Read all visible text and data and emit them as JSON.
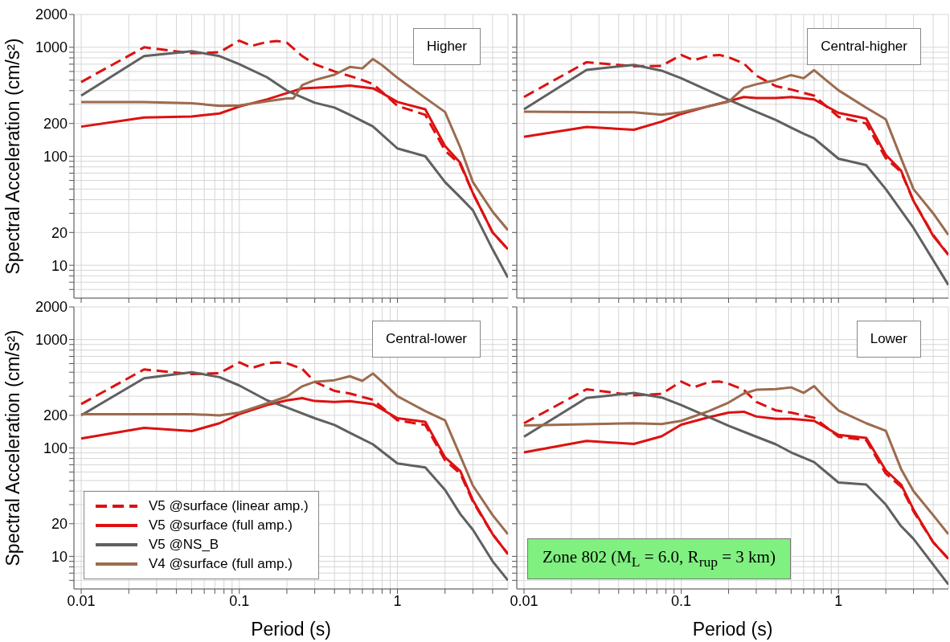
{
  "chart_data": [
    {
      "type": "line",
      "log": "xy",
      "grid": true,
      "line_style": "solid",
      "tick_labels": "y",
      "ylabel": "Spectral Acceleration (cm/s²)",
      "annotations": [
        "Higher"
      ],
      "xlim": [
        0.009,
        5
      ],
      "ylim": [
        5,
        2000
      ],
      "xticks": [
        0.01,
        {
          "value": 0.02,
          "label": null
        },
        {
          "value": 0.03,
          "label": null
        },
        {
          "value": 0.04,
          "label": null
        },
        {
          "value": 0.05,
          "label": null
        },
        {
          "value": 0.06,
          "label": null
        },
        {
          "value": 0.07,
          "label": null
        },
        {
          "value": 0.08,
          "label": null
        },
        {
          "value": 0.09,
          "label": null
        },
        0.1,
        {
          "value": 0.2,
          "label": null
        },
        {
          "value": 0.3,
          "label": null
        },
        {
          "value": 0.4,
          "label": null
        },
        {
          "value": 0.5,
          "label": null
        },
        {
          "value": 0.6,
          "label": null
        },
        {
          "value": 0.7,
          "label": null
        },
        {
          "value": 0.8,
          "label": null
        },
        {
          "value": 0.9,
          "label": null
        },
        1,
        {
          "value": 2,
          "label": null
        },
        {
          "value": 3,
          "label": null
        },
        {
          "value": 4,
          "label": null
        }
      ],
      "yticks": [
        {
          "value": 6,
          "label": null
        },
        {
          "value": 7,
          "label": null
        },
        {
          "value": 8,
          "label": null
        },
        {
          "value": 9,
          "label": null
        },
        10,
        20,
        {
          "value": 30,
          "label": null
        },
        {
          "value": 40,
          "label": null
        },
        {
          "value": 50,
          "label": null
        },
        {
          "value": 60,
          "label": null
        },
        {
          "value": 70,
          "label": null
        },
        {
          "value": 80,
          "label": null
        },
        {
          "value": 90,
          "label": null
        },
        100,
        200,
        {
          "value": 300,
          "label": null
        },
        {
          "value": 400,
          "label": null
        },
        {
          "value": 500,
          "label": null
        },
        {
          "value": 600,
          "label": null
        },
        {
          "value": 700,
          "label": null
        },
        {
          "value": 800,
          "label": null
        },
        {
          "value": 900,
          "label": null
        },
        1000,
        2000
      ],
      "series": [
        {
          "color": "#dd1111",
          "line_style": "dashed",
          "x": [
            0.01,
            0.025,
            0.05,
            0.075,
            0.1,
            0.12,
            0.15,
            0.175,
            0.2,
            0.25,
            0.3,
            0.4,
            0.5,
            0.6,
            0.7,
            0.8,
            1,
            1.5,
            2,
            2.5,
            3,
            4,
            5
          ],
          "values": [
            480,
            1000,
            880,
            900,
            1150,
            1030,
            1120,
            1140,
            1100,
            830,
            700,
            600,
            545,
            500,
            460,
            390,
            290,
            240,
            113,
            84,
            46,
            20,
            14
          ]
        },
        {
          "color": "#dd1111",
          "x": [
            0.01,
            0.025,
            0.05,
            0.075,
            0.1,
            0.15,
            0.2,
            0.25,
            0.3,
            0.4,
            0.5,
            0.7,
            0.8,
            1,
            1.5,
            2,
            2.5,
            3,
            4,
            5
          ],
          "values": [
            187,
            227,
            232,
            247,
            286,
            333,
            380,
            420,
            425,
            435,
            445,
            420,
            380,
            315,
            270,
            124,
            87,
            46,
            20,
            14
          ]
        },
        {
          "color": "#606060",
          "x": [
            0.01,
            0.025,
            0.05,
            0.075,
            0.1,
            0.15,
            0.2,
            0.3,
            0.4,
            0.5,
            0.7,
            1,
            1.5,
            2,
            2.5,
            3,
            4,
            5
          ],
          "values": [
            360,
            830,
            920,
            830,
            700,
            530,
            400,
            310,
            280,
            240,
            188,
            118,
            100,
            58,
            42,
            32,
            14,
            7.7
          ]
        },
        {
          "color": "#9c6b4e",
          "x": [
            0.01,
            0.025,
            0.05,
            0.075,
            0.1,
            0.15,
            0.2,
            0.22,
            0.25,
            0.3,
            0.4,
            0.5,
            0.6,
            0.7,
            0.8,
            1,
            1.5,
            2,
            2.5,
            3,
            4,
            5
          ],
          "values": [
            315,
            315,
            307,
            290,
            293,
            320,
            340,
            340,
            450,
            500,
            560,
            660,
            640,
            780,
            685,
            525,
            343,
            255,
            120,
            58,
            31,
            21
          ]
        }
      ]
    },
    {
      "type": "line",
      "log": "xy",
      "grid": true,
      "line_style": "solid",
      "tick_labels": false,
      "annotations": [
        "Central-higher"
      ],
      "xlim": [
        0.009,
        5
      ],
      "ylim": [
        5,
        2000
      ],
      "xticks": [
        0.01,
        {
          "value": 0.02,
          "label": null
        },
        {
          "value": 0.03,
          "label": null
        },
        {
          "value": 0.04,
          "label": null
        },
        {
          "value": 0.05,
          "label": null
        },
        {
          "value": 0.06,
          "label": null
        },
        {
          "value": 0.07,
          "label": null
        },
        {
          "value": 0.08,
          "label": null
        },
        {
          "value": 0.09,
          "label": null
        },
        0.1,
        {
          "value": 0.2,
          "label": null
        },
        {
          "value": 0.3,
          "label": null
        },
        {
          "value": 0.4,
          "label": null
        },
        {
          "value": 0.5,
          "label": null
        },
        {
          "value": 0.6,
          "label": null
        },
        {
          "value": 0.7,
          "label": null
        },
        {
          "value": 0.8,
          "label": null
        },
        {
          "value": 0.9,
          "label": null
        },
        1,
        {
          "value": 2,
          "label": null
        },
        {
          "value": 3,
          "label": null
        },
        {
          "value": 4,
          "label": null
        }
      ],
      "yticks": [
        {
          "value": 6,
          "label": null
        },
        {
          "value": 7,
          "label": null
        },
        {
          "value": 8,
          "label": null
        },
        {
          "value": 9,
          "label": null
        },
        10,
        20,
        {
          "value": 30,
          "label": null
        },
        {
          "value": 40,
          "label": null
        },
        {
          "value": 50,
          "label": null
        },
        {
          "value": 60,
          "label": null
        },
        {
          "value": 70,
          "label": null
        },
        {
          "value": 80,
          "label": null
        },
        {
          "value": 90,
          "label": null
        },
        100,
        200,
        {
          "value": 300,
          "label": null
        },
        {
          "value": 400,
          "label": null
        },
        {
          "value": 500,
          "label": null
        },
        {
          "value": 600,
          "label": null
        },
        {
          "value": 700,
          "label": null
        },
        {
          "value": 800,
          "label": null
        },
        {
          "value": 900,
          "label": null
        },
        1000,
        2000
      ],
      "series": [
        {
          "color": "#dd1111",
          "line_style": "dashed",
          "x": [
            0.01,
            0.025,
            0.05,
            0.075,
            0.1,
            0.12,
            0.15,
            0.175,
            0.2,
            0.25,
            0.3,
            0.4,
            0.5,
            0.7,
            1,
            1.5,
            2,
            2.5,
            3,
            4,
            5
          ],
          "values": [
            350,
            730,
            670,
            675,
            850,
            760,
            835,
            850,
            810,
            710,
            550,
            440,
            410,
            360,
            230,
            200,
            96,
            72,
            39,
            19,
            12.5
          ]
        },
        {
          "color": "#dd1111",
          "x": [
            0.01,
            0.025,
            0.05,
            0.075,
            0.1,
            0.15,
            0.2,
            0.25,
            0.3,
            0.4,
            0.5,
            0.7,
            1,
            1.5,
            2,
            2.5,
            3,
            4,
            5
          ],
          "values": [
            151,
            186,
            175,
            208,
            245,
            288,
            320,
            350,
            343,
            343,
            350,
            332,
            250,
            222,
            103,
            74,
            39,
            18.6,
            12.5
          ]
        },
        {
          "color": "#606060",
          "x": [
            0.01,
            0.025,
            0.05,
            0.075,
            0.1,
            0.2,
            0.3,
            0.4,
            0.5,
            0.6,
            0.7,
            1,
            1.5,
            2,
            3,
            5
          ],
          "values": [
            270,
            620,
            690,
            610,
            520,
            330,
            256,
            215,
            183,
            161,
            146,
            95,
            83,
            50,
            22,
            6.6
          ]
        },
        {
          "color": "#9c6b4e",
          "x": [
            0.01,
            0.05,
            0.075,
            0.1,
            0.15,
            0.2,
            0.25,
            0.3,
            0.4,
            0.5,
            0.6,
            0.7,
            0.8,
            1,
            1.5,
            2,
            2.5,
            3,
            4,
            5
          ],
          "values": [
            256,
            253,
            241,
            253,
            288,
            317,
            424,
            458,
            500,
            556,
            520,
            617,
            525,
            403,
            279,
            218,
            96,
            50,
            30,
            19
          ]
        }
      ]
    },
    {
      "type": "line",
      "log": "xy",
      "grid": true,
      "line_style": "solid",
      "legend": "bottom left",
      "xlabel": "Period (s)",
      "ylabel": "Spectral Acceleration (cm/s²)",
      "annotations": [
        "Central-lower"
      ],
      "xlim": [
        0.009,
        5
      ],
      "ylim": [
        5,
        2000
      ],
      "xticks": [
        0.01,
        {
          "value": 0.02,
          "label": null
        },
        {
          "value": 0.03,
          "label": null
        },
        {
          "value": 0.04,
          "label": null
        },
        {
          "value": 0.05,
          "label": null
        },
        {
          "value": 0.06,
          "label": null
        },
        {
          "value": 0.07,
          "label": null
        },
        {
          "value": 0.08,
          "label": null
        },
        {
          "value": 0.09,
          "label": null
        },
        0.1,
        {
          "value": 0.2,
          "label": null
        },
        {
          "value": 0.3,
          "label": null
        },
        {
          "value": 0.4,
          "label": null
        },
        {
          "value": 0.5,
          "label": null
        },
        {
          "value": 0.6,
          "label": null
        },
        {
          "value": 0.7,
          "label": null
        },
        {
          "value": 0.8,
          "label": null
        },
        {
          "value": 0.9,
          "label": null
        },
        1,
        {
          "value": 2,
          "label": null
        },
        {
          "value": 3,
          "label": null
        },
        {
          "value": 4,
          "label": null
        }
      ],
      "yticks": [
        {
          "value": 6,
          "label": null
        },
        {
          "value": 7,
          "label": null
        },
        {
          "value": 8,
          "label": null
        },
        {
          "value": 9,
          "label": null
        },
        10,
        20,
        {
          "value": 30,
          "label": null
        },
        {
          "value": 40,
          "label": null
        },
        {
          "value": 50,
          "label": null
        },
        {
          "value": 60,
          "label": null
        },
        {
          "value": 70,
          "label": null
        },
        {
          "value": 80,
          "label": null
        },
        {
          "value": 90,
          "label": null
        },
        100,
        200,
        {
          "value": 300,
          "label": null
        },
        {
          "value": 400,
          "label": null
        },
        {
          "value": 500,
          "label": null
        },
        {
          "value": 600,
          "label": null
        },
        {
          "value": 700,
          "label": null
        },
        {
          "value": 800,
          "label": null
        },
        {
          "value": 900,
          "label": null
        },
        1000,
        2000
      ],
      "series": [
        {
          "name": "V5 @surface (linear amp.)",
          "color": "#dd1111",
          "line_style": "dashed",
          "x": [
            0.01,
            0.025,
            0.05,
            0.075,
            0.1,
            0.12,
            0.15,
            0.175,
            0.2,
            0.25,
            0.3,
            0.4,
            0.5,
            0.7,
            1,
            1.5,
            2,
            2.5,
            3,
            4,
            5
          ],
          "values": [
            254,
            530,
            480,
            490,
            616,
            547,
            604,
            616,
            604,
            537,
            408,
            336,
            318,
            278,
            180,
            163,
            77,
            58,
            32,
            16,
            10.5
          ]
        },
        {
          "name": "V5 @surface (full amp.)",
          "color": "#dd1111",
          "x": [
            0.01,
            0.025,
            0.05,
            0.075,
            0.1,
            0.15,
            0.2,
            0.25,
            0.3,
            0.4,
            0.5,
            0.7,
            1,
            1.5,
            2,
            2.5,
            3,
            4,
            5
          ],
          "values": [
            122,
            153,
            143,
            169,
            205,
            249,
            275,
            288,
            271,
            266,
            270,
            254,
            188,
            174,
            82,
            61,
            33,
            16,
            10.5
          ]
        },
        {
          "name": "V5 @NS_B",
          "color": "#606060",
          "x": [
            0.01,
            0.025,
            0.05,
            0.075,
            0.1,
            0.15,
            0.2,
            0.3,
            0.4,
            0.5,
            0.7,
            1,
            1.5,
            2,
            2.5,
            3,
            4,
            5
          ],
          "values": [
            200,
            440,
            500,
            450,
            377,
            275,
            236,
            188,
            163,
            138,
            108,
            72,
            66,
            41,
            24.5,
            17.6,
            9,
            6
          ]
        },
        {
          "name": "V4 @surface (full amp.)",
          "color": "#9c6b4e",
          "x": [
            0.01,
            0.05,
            0.075,
            0.1,
            0.15,
            0.2,
            0.25,
            0.3,
            0.4,
            0.5,
            0.6,
            0.7,
            0.8,
            1,
            1.5,
            2,
            2.5,
            3,
            4,
            5
          ],
          "values": [
            205,
            205,
            200,
            212,
            258,
            298,
            370,
            408,
            422,
            459,
            416,
            486,
            408,
            300,
            219,
            180,
            84,
            45,
            24,
            16
          ]
        }
      ]
    },
    {
      "type": "line",
      "log": "xy",
      "grid": true,
      "line_style": "solid",
      "tick_labels": "x",
      "xlabel": "Period (s)",
      "annotations": [
        "Lower",
        "Zone 802 (M$_{L}$ = 6.0, R$_{rup}$ = 3 km)"
      ],
      "xlim": [
        0.009,
        5
      ],
      "ylim": [
        5,
        2000
      ],
      "xticks": [
        0.01,
        {
          "value": 0.02,
          "label": null
        },
        {
          "value": 0.03,
          "label": null
        },
        {
          "value": 0.04,
          "label": null
        },
        {
          "value": 0.05,
          "label": null
        },
        {
          "value": 0.06,
          "label": null
        },
        {
          "value": 0.07,
          "label": null
        },
        {
          "value": 0.08,
          "label": null
        },
        {
          "value": 0.09,
          "label": null
        },
        0.1,
        {
          "value": 0.2,
          "label": null
        },
        {
          "value": 0.3,
          "label": null
        },
        {
          "value": 0.4,
          "label": null
        },
        {
          "value": 0.5,
          "label": null
        },
        {
          "value": 0.6,
          "label": null
        },
        {
          "value": 0.7,
          "label": null
        },
        {
          "value": 0.8,
          "label": null
        },
        {
          "value": 0.9,
          "label": null
        },
        1,
        {
          "value": 2,
          "label": null
        },
        {
          "value": 3,
          "label": null
        },
        {
          "value": 4,
          "label": null
        }
      ],
      "yticks": [
        {
          "value": 6,
          "label": null
        },
        {
          "value": 7,
          "label": null
        },
        {
          "value": 8,
          "label": null
        },
        {
          "value": 9,
          "label": null
        },
        10,
        20,
        {
          "value": 30,
          "label": null
        },
        {
          "value": 40,
          "label": null
        },
        {
          "value": 50,
          "label": null
        },
        {
          "value": 60,
          "label": null
        },
        {
          "value": 70,
          "label": null
        },
        {
          "value": 80,
          "label": null
        },
        {
          "value": 90,
          "label": null
        },
        100,
        200,
        {
          "value": 300,
          "label": null
        },
        {
          "value": 400,
          "label": null
        },
        {
          "value": 500,
          "label": null
        },
        {
          "value": 600,
          "label": null
        },
        {
          "value": 700,
          "label": null
        },
        {
          "value": 800,
          "label": null
        },
        {
          "value": 900,
          "label": null
        },
        1000,
        2000
      ],
      "series": [
        {
          "color": "#dd1111",
          "line_style": "dashed",
          "x": [
            0.01,
            0.025,
            0.05,
            0.075,
            0.1,
            0.12,
            0.15,
            0.175,
            0.2,
            0.25,
            0.3,
            0.4,
            0.5,
            0.7,
            1,
            1.5,
            2,
            2.5,
            3,
            4,
            5
          ],
          "values": [
            169,
            348,
            306,
            316,
            410,
            362,
            405,
            410,
            391,
            344,
            266,
            222,
            212,
            190,
            127,
            118,
            58,
            44,
            26,
            13.5,
            9.5
          ]
        },
        {
          "color": "#dd1111",
          "x": [
            0.01,
            0.025,
            0.05,
            0.075,
            0.1,
            0.15,
            0.2,
            0.25,
            0.3,
            0.4,
            0.5,
            0.7,
            1,
            1.5,
            2,
            2.5,
            3,
            4,
            5
          ],
          "values": [
            91,
            116,
            109,
            128,
            164,
            192,
            212,
            216,
            195,
            186,
            186,
            178,
            132,
            124,
            62,
            46,
            27,
            13.5,
            9.5
          ]
        },
        {
          "color": "#606060",
          "x": [
            0.01,
            0.025,
            0.05,
            0.075,
            0.1,
            0.2,
            0.3,
            0.4,
            0.5,
            0.7,
            1,
            1.5,
            2,
            2.5,
            3,
            5
          ],
          "values": [
            127,
            289,
            322,
            292,
            249,
            160,
            127,
            108,
            91,
            74,
            48,
            46,
            30,
            19,
            14.5,
            5.5
          ]
        },
        {
          "color": "#9c6b4e",
          "x": [
            0.01,
            0.05,
            0.075,
            0.1,
            0.15,
            0.2,
            0.25,
            0.3,
            0.4,
            0.5,
            0.6,
            0.7,
            0.8,
            1,
            1.5,
            2,
            2.5,
            3,
            4,
            5
          ],
          "values": [
            161,
            169,
            166,
            178,
            219,
            262,
            318,
            344,
            349,
            362,
            322,
            372,
            302,
            222,
            169,
            144,
            64,
            40,
            24,
            16
          ]
        }
      ]
    }
  ]
}
